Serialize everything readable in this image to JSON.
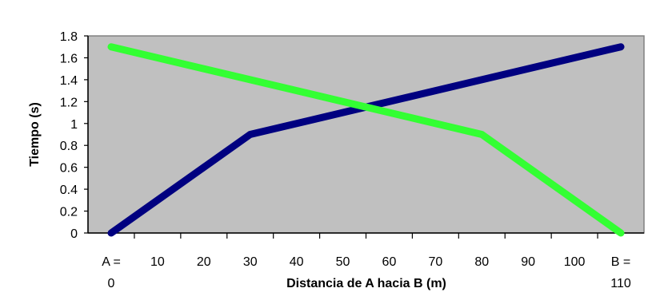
{
  "chart_data": {
    "type": "line",
    "title": "",
    "xlabel": "Distancia de A hacia B (m)",
    "ylabel": "Tiempo (s)",
    "categories": [
      "A =",
      "10",
      "20",
      "30",
      "40",
      "50",
      "60",
      "70",
      "80",
      "90",
      "100",
      "B ="
    ],
    "category_sublabels": [
      "0",
      "",
      "",
      "",
      "",
      "",
      "",
      "",
      "",
      "",
      "",
      "110"
    ],
    "x": [
      0,
      10,
      20,
      30,
      40,
      50,
      60,
      70,
      80,
      90,
      100,
      110
    ],
    "xlim": [
      0,
      110
    ],
    "ylim": [
      0,
      1.8
    ],
    "yticks": [
      "0",
      "0.2",
      "0.4",
      "0.6",
      "0.8",
      "1",
      "1.2",
      "1.4",
      "1.6",
      "1.8"
    ],
    "grid": false,
    "legend": "none",
    "plot_background": "#c0c0c0",
    "series": [
      {
        "color": "#000080",
        "points": [
          [
            0,
            0
          ],
          [
            30,
            0.9
          ],
          [
            110,
            1.7
          ]
        ]
      },
      {
        "color": "#33ff33",
        "points": [
          [
            0,
            1.7
          ],
          [
            80,
            0.9
          ],
          [
            110,
            0
          ]
        ]
      }
    ]
  }
}
